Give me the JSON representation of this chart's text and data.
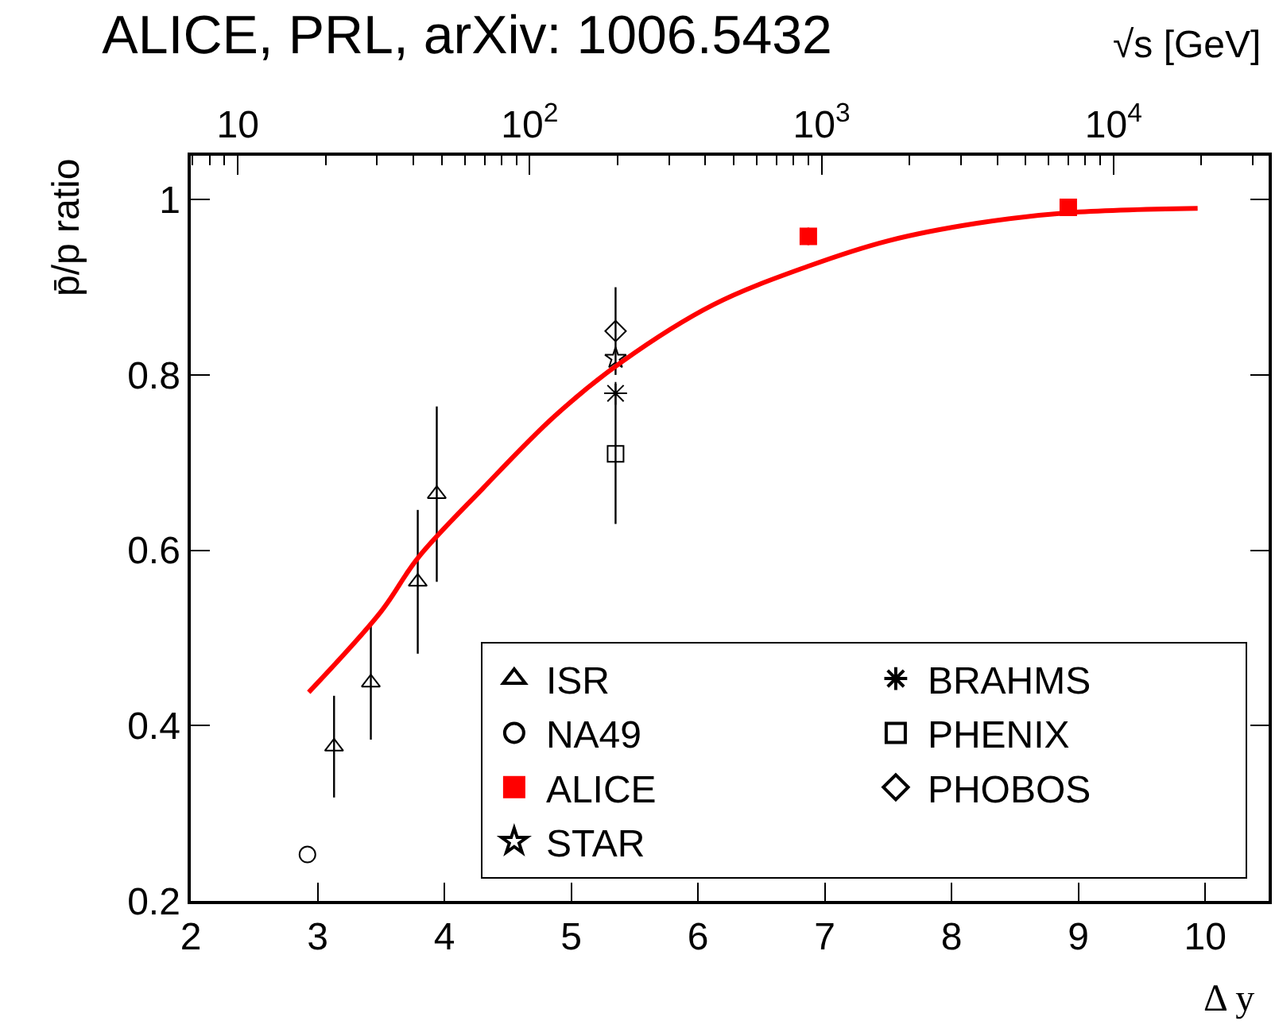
{
  "chart_data": {
    "type": "scatter",
    "title": "ALICE, PRL, arXiv: 1006.5432",
    "xlabel": "Δ y",
    "ylabel": "p̄/p ratio",
    "x2label": "√s [GeV]",
    "xlim": [
      2,
      10.5
    ],
    "xticks": [
      2,
      3,
      4,
      5,
      6,
      7,
      8,
      9,
      10
    ],
    "ylim": [
      0.2,
      1.05
    ],
    "yticks": [
      0.2,
      0.4,
      0.6,
      0.8,
      1
    ],
    "x2lim": [
      6.9,
      34000
    ],
    "x2ticks": [
      10,
      {
        "value": 100,
        "label": "10$^{2}$"
      },
      {
        "value": 1000,
        "label": "10$^{3}$"
      },
      {
        "value": 10000,
        "label": "10$^{4}$"
      }
    ],
    "log": "x2",
    "legend": "bottom right",
    "series": [
      {
        "name": "ISR",
        "color": "#000000",
        "marker": "triangle",
        "x": [
          3.13,
          3.42,
          3.79,
          3.94
        ],
        "values": [
          0.376,
          0.449,
          0.564,
          0.664
        ],
        "errors": [
          0.058,
          0.065,
          0.082,
          0.1
        ]
      },
      {
        "name": "BRAHMS",
        "color": "#000000",
        "marker": "cross",
        "x": [
          5.35
        ],
        "values": [
          0.779
        ]
      },
      {
        "name": "NA49",
        "color": "#000000",
        "marker": "circle",
        "x": [
          2.92
        ],
        "values": [
          0.253
        ]
      },
      {
        "name": "PHENIX",
        "color": "#000000",
        "marker": "square",
        "x": [
          5.35
        ],
        "values": [
          0.71
        ],
        "errors": [
          0.08
        ]
      },
      {
        "name": "ALICE",
        "color": "#ff0000",
        "marker": "square",
        "x": [
          6.87,
          8.92
        ],
        "values": [
          0.958,
          0.991
        ],
        "errors": [
          0.01,
          0.008
        ]
      },
      {
        "name": "PHOBOS",
        "color": "#000000",
        "marker": "diamond",
        "x": [
          5.35
        ],
        "values": [
          0.85
        ],
        "errors": [
          0.05
        ]
      },
      {
        "name": "STAR",
        "color": "#000000",
        "marker": "star",
        "x": [
          5.35
        ],
        "values": [
          0.819
        ]
      },
      {
        "type": "line",
        "color": "#ff0000",
        "marker": "none",
        "x": [
          2.93,
          3.5,
          3.79,
          4.3,
          4.87,
          5.4,
          6.12,
          6.87,
          7.5,
          8.2,
          8.92,
          9.94
        ],
        "values": [
          0.438,
          0.53,
          0.591,
          0.67,
          0.753,
          0.815,
          0.88,
          0.924,
          0.953,
          0.973,
          0.985,
          0.99
        ]
      }
    ]
  }
}
